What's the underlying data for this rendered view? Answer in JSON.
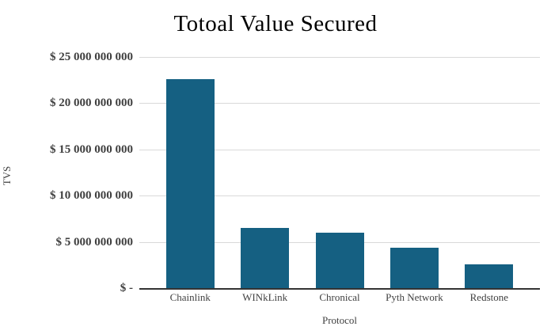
{
  "title": "Totoal Value Secured",
  "y_axis": {
    "title": "TVS",
    "tick_labels": [
      "$ 25 000 000 000",
      "$ 20 000 000 000",
      "$ 15 000 000 000",
      "$ 10 000 000 000",
      "$ 5 000 000 000",
      "$ -"
    ]
  },
  "x_axis": {
    "title": "Protocol"
  },
  "chart_data": {
    "type": "bar",
    "title": "Totoal Value Secured",
    "xlabel": "Protocol",
    "ylabel": "TVS",
    "categories": [
      "Chainlink",
      "WINkLink",
      "Chronical",
      "Pyth Network",
      "Redstone"
    ],
    "values": [
      22600000000,
      6500000000,
      6000000000,
      4400000000,
      2600000000
    ],
    "ylim": [
      0,
      25000000000
    ],
    "y_tick_labels": [
      "$ 25 000 000 000",
      "$ 20 000 000 000",
      "$ 15 000 000 000",
      "$ 10 000 000 000",
      "$ 5 000 000 000",
      "$ -"
    ],
    "grid": "horizontal",
    "legend": "none",
    "bar_color": "#156082"
  },
  "colors": {
    "bar": "#156082",
    "gridline": "#d9d9d9",
    "axis_line": "#333333",
    "label": "#404040",
    "title": "#000000",
    "background": "#ffffff"
  }
}
